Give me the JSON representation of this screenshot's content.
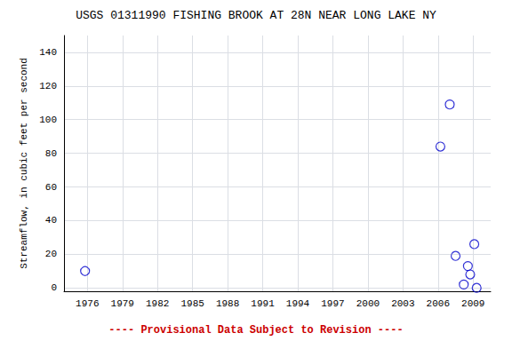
{
  "chart_data": {
    "type": "scatter",
    "title": "USGS 01311990 FISHING BROOK AT 28N NEAR LONG LAKE NY",
    "ylabel": "Streamflow, in cubic feet per second",
    "x": [
      1975.8,
      2006.2,
      2007.0,
      2007.5,
      2008.2,
      2008.55,
      2008.75,
      2009.1,
      2009.3
    ],
    "values": [
      10,
      84,
      109,
      19,
      2,
      13,
      8,
      26,
      0
    ],
    "color": "#0000cc",
    "marker": "open_circle",
    "xlim": [
      1974.0,
      2010.5
    ],
    "xticks": [
      1976,
      1979,
      1982,
      1985,
      1988,
      1991,
      1994,
      1997,
      2000,
      2003,
      2006,
      2009
    ],
    "ylim": [
      -2,
      150
    ],
    "yticks": [
      0,
      20,
      40,
      60,
      80,
      100,
      120,
      140
    ],
    "grid": true,
    "annotation": {
      "text": "---- Provisional Data Subject to Revision ----",
      "color": "#cc0000"
    }
  }
}
